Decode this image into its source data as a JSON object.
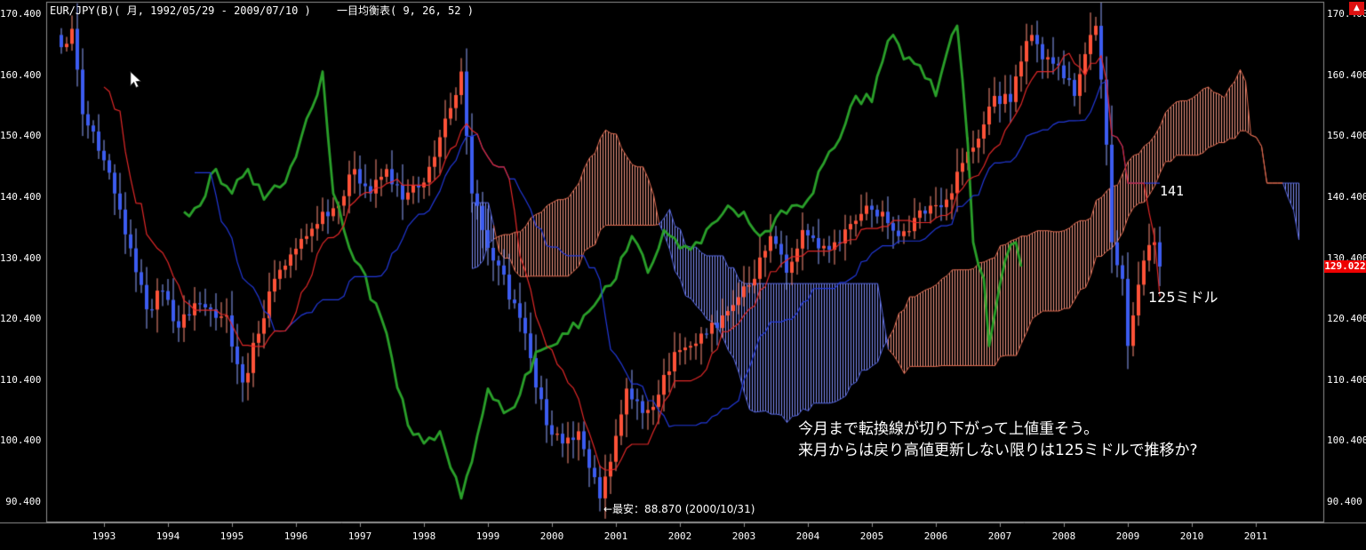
{
  "window": {
    "title": "EUR/JPY(B)( 月, 1992/05/29 - 2009/07/10 )",
    "indicator": "一目均衡表( 9, 26, 52 )",
    "corner_arrow": "▲"
  },
  "icons": {
    "corner_button": "up-arrow",
    "cursor": "pointer-arrow"
  },
  "y_axis": {
    "ticks": [
      "170.400",
      "160.400",
      "150.400",
      "140.400",
      "130.400",
      "120.400",
      "110.400",
      "100.400",
      "90.400"
    ]
  },
  "x_axis": {
    "ticks": [
      "1993",
      "1994",
      "1995",
      "1996",
      "1997",
      "1998",
      "1999",
      "2000",
      "2001",
      "2002",
      "2003",
      "2004",
      "2005",
      "2006",
      "2007",
      "2008",
      "2009",
      "2010",
      "2011"
    ]
  },
  "price_marker": {
    "text": "129.022",
    "bg": "#ee0000",
    "fg": "#ffffff"
  },
  "annotations": {
    "level_141": "141",
    "middle_125": "125ミドル",
    "record_low_note": "←最安：88.870 (2000/10/31)",
    "comment_line1": "今月まで転換線が切り下がって上値重そう。",
    "comment_line2": "来月からは戻り高値更新しない限りは125ミドルで推移か?"
  },
  "colors": {
    "background": "#000000",
    "up_candle": "#ff5238",
    "up_wick": "#ff8f7d",
    "down_candle": "#3c5cf0",
    "down_wick": "#8fa3ff",
    "tenkan_line": "#e02828",
    "kijun_line": "#2238d8",
    "chikou_line": "#2aa02a",
    "cloud_bull": "#ef9480",
    "cloud_bull_edge": "#e06a50",
    "cloud_bear": "#7e8bf2",
    "cloud_bear_edge": "#5566e0",
    "axis_text": "#ffffff",
    "frame": "#909090"
  },
  "chart_data": {
    "type": "candlestick",
    "symbol": "EUR/JPY(B)",
    "timeframe": "monthly",
    "start_month": "1992-05",
    "end_month": "2009-07",
    "ylim": [
      87.0,
      172.4
    ],
    "ichimoku_params": {
      "tenkan": 9,
      "kijun": 26,
      "senkou_b": 52,
      "displacement": 26
    },
    "last_close": 129.022,
    "record_low": {
      "value": 88.87,
      "date": "2000/10/31"
    },
    "close_keyframes": [
      [
        0,
        165
      ],
      [
        2,
        168
      ],
      [
        4,
        154
      ],
      [
        7,
        148
      ],
      [
        10,
        141
      ],
      [
        13,
        132
      ],
      [
        15,
        126
      ],
      [
        16,
        122
      ],
      [
        19,
        125
      ],
      [
        22,
        119
      ],
      [
        25,
        123
      ],
      [
        28,
        122
      ],
      [
        31,
        121
      ],
      [
        33,
        113
      ],
      [
        34,
        110
      ],
      [
        37,
        118
      ],
      [
        40,
        127
      ],
      [
        43,
        131
      ],
      [
        46,
        134
      ],
      [
        49,
        138
      ],
      [
        52,
        139
      ],
      [
        55,
        145
      ],
      [
        58,
        141
      ],
      [
        61,
        145
      ],
      [
        64,
        140
      ],
      [
        67,
        142
      ],
      [
        70,
        147
      ],
      [
        73,
        155
      ],
      [
        75,
        161
      ],
      [
        77,
        141
      ],
      [
        79,
        135
      ],
      [
        81,
        130
      ],
      [
        85,
        123
      ],
      [
        88,
        114
      ],
      [
        91,
        103
      ],
      [
        94,
        100
      ],
      [
        97,
        102
      ],
      [
        99,
        96
      ],
      [
        101,
        91
      ],
      [
        103,
        97
      ],
      [
        106,
        109
      ],
      [
        109,
        105
      ],
      [
        112,
        108
      ],
      [
        115,
        115
      ],
      [
        118,
        116
      ],
      [
        121,
        118
      ],
      [
        124,
        121
      ],
      [
        127,
        124
      ],
      [
        130,
        127
      ],
      [
        133,
        134
      ],
      [
        136,
        128
      ],
      [
        139,
        135
      ],
      [
        142,
        132
      ],
      [
        145,
        133
      ],
      [
        148,
        136
      ],
      [
        151,
        139
      ],
      [
        154,
        138
      ],
      [
        157,
        134
      ],
      [
        160,
        137
      ],
      [
        163,
        139
      ],
      [
        166,
        140
      ],
      [
        169,
        146
      ],
      [
        172,
        150
      ],
      [
        175,
        157
      ],
      [
        178,
        156
      ],
      [
        181,
        166
      ],
      [
        182,
        167
      ],
      [
        184,
        163
      ],
      [
        187,
        162
      ],
      [
        190,
        157
      ],
      [
        193,
        167
      ],
      [
        194,
        168.5
      ],
      [
        196,
        149
      ],
      [
        197,
        133
      ],
      [
        199,
        127
      ],
      [
        200,
        116
      ],
      [
        201,
        121
      ],
      [
        203,
        130
      ],
      [
        205,
        133
      ],
      [
        206,
        129.022
      ]
    ],
    "extreme_overrides": {
      "2": {
        "high": 170.2
      },
      "34": {
        "low": 106.8
      },
      "75": {
        "high": 163.2
      },
      "101": {
        "low": 88.87
      },
      "194": {
        "high": 169.97
      },
      "200": {
        "low": 112.2
      }
    }
  }
}
